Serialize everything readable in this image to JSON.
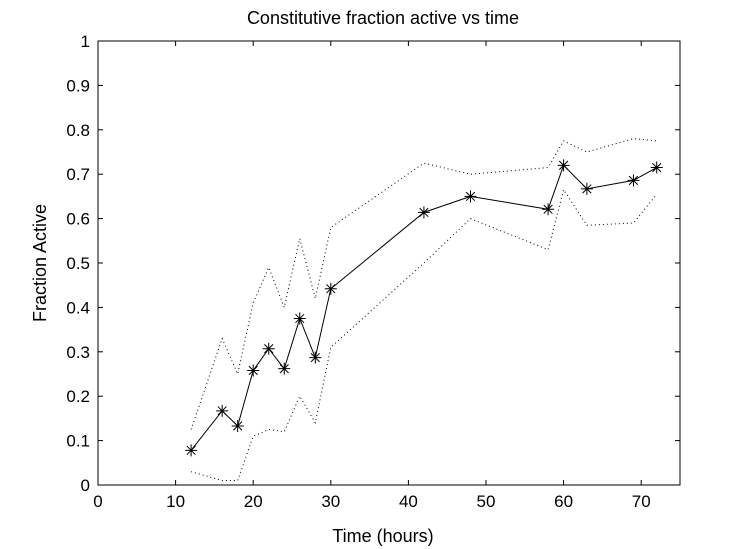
{
  "chart_data": {
    "type": "line",
    "title": "Constitutive fraction active vs time",
    "xlabel": "Time (hours)",
    "ylabel": "Fraction Active",
    "xlim": [
      0,
      75
    ],
    "ylim": [
      0,
      1
    ],
    "x_ticks": [
      0,
      10,
      20,
      30,
      40,
      50,
      60,
      70
    ],
    "y_ticks": [
      0,
      0.1,
      0.2,
      0.3,
      0.4,
      0.5,
      0.6,
      0.7,
      0.8,
      0.9,
      1
    ],
    "x_tick_labels": [
      "0",
      "10",
      "20",
      "30",
      "40",
      "50",
      "60",
      "70"
    ],
    "y_tick_labels": [
      "0",
      "0.1",
      "0.2",
      "0.3",
      "0.4",
      "0.5",
      "0.6",
      "0.7",
      "0.8",
      "0.9",
      "1"
    ],
    "grid": false,
    "x": [
      12,
      16,
      18,
      20,
      22,
      24,
      26,
      28,
      30,
      42,
      48,
      58,
      60,
      63,
      69,
      72
    ],
    "series": [
      {
        "role": "mean",
        "style": "solid-with-asterisk-markers",
        "color": "#000000",
        "values": [
          0.078,
          0.167,
          0.133,
          0.258,
          0.307,
          0.262,
          0.375,
          0.287,
          0.442,
          0.614,
          0.65,
          0.621,
          0.72,
          0.667,
          0.686,
          0.715
        ]
      },
      {
        "role": "upper-bound",
        "style": "dotted",
        "color": "#000000",
        "values": [
          0.125,
          0.33,
          0.25,
          0.41,
          0.49,
          0.4,
          0.555,
          0.42,
          0.58,
          0.725,
          0.7,
          0.715,
          0.775,
          0.75,
          0.78,
          0.775
        ]
      },
      {
        "role": "lower-bound",
        "style": "dotted",
        "color": "#000000",
        "values": [
          0.03,
          0.01,
          0.01,
          0.11,
          0.125,
          0.12,
          0.2,
          0.14,
          0.31,
          0.5,
          0.6,
          0.53,
          0.665,
          0.585,
          0.59,
          0.655
        ]
      }
    ]
  }
}
